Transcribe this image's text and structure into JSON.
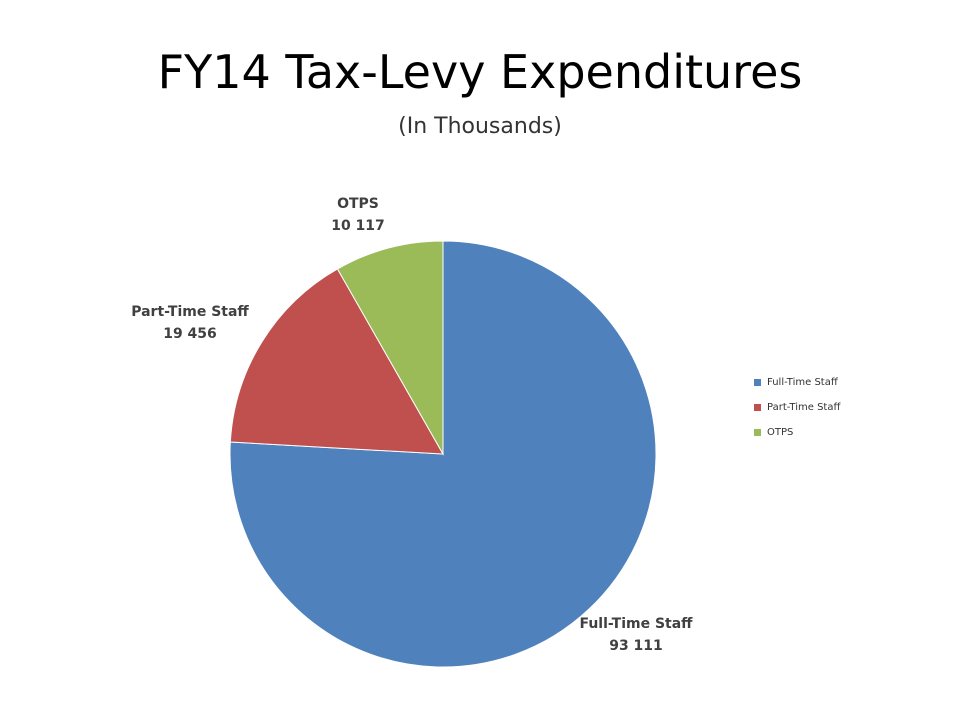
{
  "title": "FY14 Tax-Levy Expenditures",
  "subtitle": "(In Thousands)",
  "chart_data": {
    "type": "pie",
    "title": "FY14 Tax-Levy Expenditures",
    "subtitle": "(In Thousands)",
    "categories": [
      "Full-Time Staff",
      "Part-Time Staff",
      "OTPS"
    ],
    "values": [
      93111,
      19456,
      10117
    ],
    "value_labels": [
      "93 111",
      "19 456",
      "10 117"
    ],
    "colors": [
      "#4F81BD",
      "#C0504D",
      "#9BBB59"
    ],
    "start_angle": "12 o'clock",
    "direction": "clockwise",
    "legend": "right"
  }
}
